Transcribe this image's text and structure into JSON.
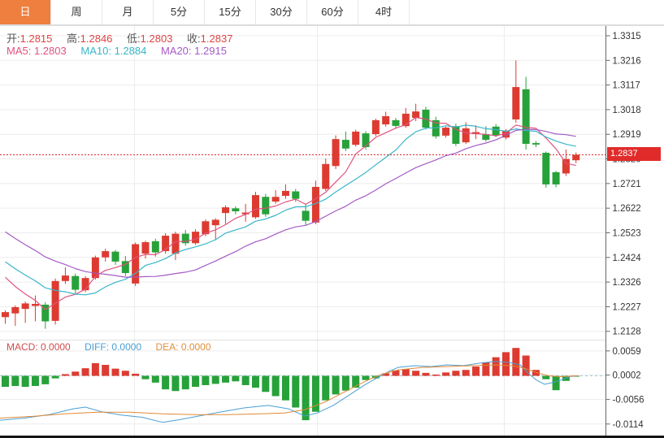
{
  "toolbar": {
    "tabs": [
      {
        "label": "日",
        "active": true
      },
      {
        "label": "周",
        "active": false
      },
      {
        "label": "月",
        "active": false
      },
      {
        "label": "5分",
        "active": false
      },
      {
        "label": "15分",
        "active": false
      },
      {
        "label": "30分",
        "active": false
      },
      {
        "label": "60分",
        "active": false
      },
      {
        "label": "4时",
        "active": false
      }
    ]
  },
  "readouts": {
    "ohlc": {
      "open_label": "开:",
      "open": "1.2815",
      "high_label": "高:",
      "high": "1.2846",
      "low_label": "低:",
      "low": "1.2803",
      "close_label": "收:",
      "close": "1.2837"
    },
    "ma": {
      "ma5_label": "MA5:",
      "ma5": "1.2803",
      "ma10_label": "MA10:",
      "ma10": "1.2884",
      "ma20_label": "MA20:",
      "ma20": "1.2915"
    },
    "macd": {
      "macd_label": "MACD:",
      "macd": "0.0000",
      "diff_label": "DIFF:",
      "diff": "0.0000",
      "dea_label": "DEA:",
      "dea": "0.0000"
    }
  },
  "price_tag": {
    "value": "1.2837"
  },
  "colors": {
    "up": "#dd3b31",
    "down": "#27a13a",
    "ma5": "#e0527e",
    "ma10": "#38b6c9",
    "ma20": "#a45bc4",
    "diff": "#4a9fd4",
    "dea": "#e08a35",
    "last_price": "#e12b2b",
    "grid": "#ececec",
    "axis_line": "#666",
    "axis_text": "#333",
    "tab_active": "#ee7f3e"
  },
  "chart_data": {
    "type": "candlestick",
    "title": "",
    "price_axis_ticks": [
      "1.3315",
      "1.3216",
      "1.3117",
      "1.3018",
      "1.2919",
      "1.2820",
      "1.2721",
      "1.2622",
      "1.2523",
      "1.2424",
      "1.2326",
      "1.2227",
      "1.2128"
    ],
    "price_axis_range": [
      1.2128,
      1.3315
    ],
    "last_price": 1.2837,
    "ohlc_last": {
      "open": 1.2815,
      "high": 1.2846,
      "low": 1.2803,
      "close": 1.2837
    },
    "ma_values_last": {
      "ma5": 1.2803,
      "ma10": 1.2884,
      "ma20": 1.2915
    },
    "candles": [
      [
        1.2185,
        1.2212,
        1.2158,
        1.2205
      ],
      [
        1.22,
        1.2232,
        1.215,
        1.2225
      ],
      [
        1.2218,
        1.2248,
        1.2162,
        1.224
      ],
      [
        1.223,
        1.2272,
        1.2168,
        1.2238
      ],
      [
        1.2235,
        1.2245,
        1.2138,
        1.2168
      ],
      [
        1.217,
        1.234,
        1.2155,
        1.233
      ],
      [
        1.233,
        1.2385,
        1.2318,
        1.2352
      ],
      [
        1.235,
        1.236,
        1.228,
        1.2295
      ],
      [
        1.2293,
        1.235,
        1.2285,
        1.2342
      ],
      [
        1.2342,
        1.2432,
        1.2335,
        1.2425
      ],
      [
        1.2425,
        1.246,
        1.2408,
        1.245
      ],
      [
        1.2448,
        1.2455,
        1.2395,
        1.2408
      ],
      [
        1.241,
        1.243,
        1.235,
        1.2362
      ],
      [
        1.232,
        1.2485,
        1.231,
        1.2478
      ],
      [
        1.244,
        1.2492,
        1.242,
        1.2486
      ],
      [
        1.249,
        1.25,
        1.2428,
        1.2445
      ],
      [
        1.245,
        1.2522,
        1.244,
        1.2512
      ],
      [
        1.244,
        1.2528,
        1.2414,
        1.252
      ],
      [
        1.252,
        1.2535,
        1.2472,
        1.2482
      ],
      [
        1.2482,
        1.2538,
        1.2475,
        1.2528
      ],
      [
        1.2518,
        1.2578,
        1.251,
        1.257
      ],
      [
        1.2554,
        1.2582,
        1.2496,
        1.2576
      ],
      [
        1.2603,
        1.2634,
        1.256,
        1.2626
      ],
      [
        1.2622,
        1.263,
        1.2598,
        1.261
      ],
      [
        1.2598,
        1.264,
        1.2568,
        1.2605
      ],
      [
        1.2586,
        1.2688,
        1.258,
        1.2675
      ],
      [
        1.2668,
        1.268,
        1.2588,
        1.2598
      ],
      [
        1.2649,
        1.2695,
        1.264,
        1.2668
      ],
      [
        1.2672,
        1.2718,
        1.266,
        1.2692
      ],
      [
        1.269,
        1.27,
        1.2648,
        1.266
      ],
      [
        1.2612,
        1.264,
        1.2555,
        1.2572
      ],
      [
        1.2565,
        1.2733,
        1.2558,
        1.2708
      ],
      [
        1.27,
        1.2822,
        1.2692,
        1.28
      ],
      [
        1.2792,
        1.2915,
        1.278,
        1.29
      ],
      [
        1.2897,
        1.293,
        1.2852,
        1.2862
      ],
      [
        1.2877,
        1.2938,
        1.287,
        1.293
      ],
      [
        1.2923,
        1.2932,
        1.2858,
        1.2868
      ],
      [
        1.292,
        1.2982,
        1.2912,
        1.2976
      ],
      [
        1.2959,
        1.301,
        1.295,
        1.2992
      ],
      [
        1.2976,
        1.2985,
        1.2942,
        1.2953
      ],
      [
        1.2952,
        1.3025,
        1.2945,
        1.3002
      ],
      [
        1.2985,
        1.3042,
        1.2972,
        1.3011
      ],
      [
        1.3018,
        1.303,
        1.2938,
        1.2946
      ],
      [
        1.2976,
        1.299,
        1.2902,
        1.2911
      ],
      [
        1.2914,
        1.295,
        1.2906,
        1.2946
      ],
      [
        1.2952,
        1.2962,
        1.2872,
        1.2881
      ],
      [
        1.2887,
        1.2968,
        1.288,
        1.2943
      ],
      [
        1.292,
        1.2955,
        1.29,
        1.2928
      ],
      [
        1.292,
        1.2952,
        1.289,
        1.2897
      ],
      [
        1.295,
        1.296,
        1.2908,
        1.2915
      ],
      [
        1.2906,
        1.294,
        1.2898,
        1.2934
      ],
      [
        1.2979,
        1.3216,
        1.2966,
        1.3109
      ],
      [
        1.31,
        1.315,
        1.2858,
        1.2881
      ],
      [
        1.2884,
        1.2892,
        1.2868,
        1.2878
      ],
      [
        1.2845,
        1.285,
        1.2705,
        1.2718
      ],
      [
        1.2767,
        1.2772,
        1.2706,
        1.2718
      ],
      [
        1.2762,
        1.2858,
        1.2752,
        1.282
      ],
      [
        1.2815,
        1.2846,
        1.2803,
        1.2837
      ]
    ],
    "ma_seed_closes": [
      1.276,
      1.2735,
      1.271,
      1.2685,
      1.266,
      1.2635,
      1.261,
      1.2585,
      1.256,
      1.2535,
      1.251,
      1.249,
      1.247,
      1.245,
      1.243,
      1.241,
      1.239,
      1.237,
      1.235
    ],
    "ma_periods": [
      5,
      10,
      20
    ],
    "macd": {
      "axis_ticks": [
        {
          "label": "0.0059",
          "value": 0.0059
        },
        {
          "label": "0.0002",
          "value": 0.0002
        },
        {
          "label": "-0.0056",
          "value": -0.0056
        },
        {
          "label": "-0.0114",
          "value": -0.0114
        }
      ],
      "hist": [
        -0.0026,
        -0.0024,
        -0.0026,
        -0.0024,
        -0.002,
        -0.0006,
        0.0004,
        0.001,
        0.0018,
        0.003,
        0.0026,
        0.0017,
        0.0012,
        0.0005,
        -0.0008,
        -0.0016,
        -0.0032,
        -0.0036,
        -0.0032,
        -0.0026,
        -0.0022,
        -0.0019,
        -0.0016,
        -0.0013,
        -0.0022,
        -0.0028,
        -0.0038,
        -0.0048,
        -0.0058,
        -0.0075,
        -0.0105,
        -0.0085,
        -0.0058,
        -0.0044,
        -0.0035,
        -0.0028,
        -0.001,
        -0.0006,
        0.0006,
        0.0013,
        0.0016,
        0.0012,
        0.0007,
        0.0003,
        0.0008,
        0.0012,
        0.0014,
        0.0022,
        0.0032,
        0.0044,
        0.0056,
        0.0066,
        0.0048,
        0.0014,
        -0.0008,
        -0.0034,
        -0.0012,
        -0.0002
      ],
      "diff_line": [
        [
          0,
          -0.0105
        ],
        [
          30,
          -0.01
        ],
        [
          60,
          -0.0092
        ],
        [
          90,
          -0.0078
        ],
        [
          105,
          -0.0074
        ],
        [
          125,
          -0.0085
        ],
        [
          150,
          -0.0093
        ],
        [
          175,
          -0.0098
        ],
        [
          200,
          -0.011
        ],
        [
          220,
          -0.0104
        ],
        [
          245,
          -0.0095
        ],
        [
          270,
          -0.0086
        ],
        [
          300,
          -0.0076
        ],
        [
          330,
          -0.007
        ],
        [
          355,
          -0.0078
        ],
        [
          375,
          -0.0095
        ],
        [
          390,
          -0.0088
        ],
        [
          410,
          -0.007
        ],
        [
          430,
          -0.0045
        ],
        [
          450,
          -0.002
        ],
        [
          465,
          -0.0004
        ],
        [
          480,
          0.0012
        ],
        [
          490,
          0.002
        ],
        [
          510,
          0.0024
        ],
        [
          530,
          0.0022
        ],
        [
          550,
          0.0026
        ],
        [
          570,
          0.0024
        ],
        [
          590,
          0.003
        ],
        [
          610,
          0.0034
        ],
        [
          625,
          0.0032
        ],
        [
          640,
          0.0026
        ],
        [
          650,
          0.0006
        ],
        [
          660,
          -0.001
        ],
        [
          670,
          -0.002
        ],
        [
          680,
          -0.0016
        ],
        [
          690,
          -0.001
        ],
        [
          700,
          -0.0002
        ],
        [
          710,
          0.0
        ]
      ],
      "dea_line": [
        [
          0,
          -0.01
        ],
        [
          40,
          -0.0096
        ],
        [
          80,
          -0.009
        ],
        [
          120,
          -0.0086
        ],
        [
          160,
          -0.0086
        ],
        [
          200,
          -0.009
        ],
        [
          240,
          -0.0092
        ],
        [
          280,
          -0.0092
        ],
        [
          320,
          -0.009
        ],
        [
          350,
          -0.0088
        ],
        [
          375,
          -0.008
        ],
        [
          400,
          -0.0062
        ],
        [
          420,
          -0.0042
        ],
        [
          440,
          -0.0022
        ],
        [
          455,
          -0.0008
        ],
        [
          470,
          0.0004
        ],
        [
          490,
          0.0014
        ],
        [
          520,
          0.002
        ],
        [
          550,
          0.0022
        ],
        [
          580,
          0.0024
        ],
        [
          610,
          0.0026
        ],
        [
          630,
          0.0024
        ],
        [
          645,
          0.0018
        ],
        [
          660,
          0.0008
        ],
        [
          675,
          0.0
        ],
        [
          690,
          -0.0002
        ],
        [
          710,
          0.0
        ]
      ]
    }
  }
}
